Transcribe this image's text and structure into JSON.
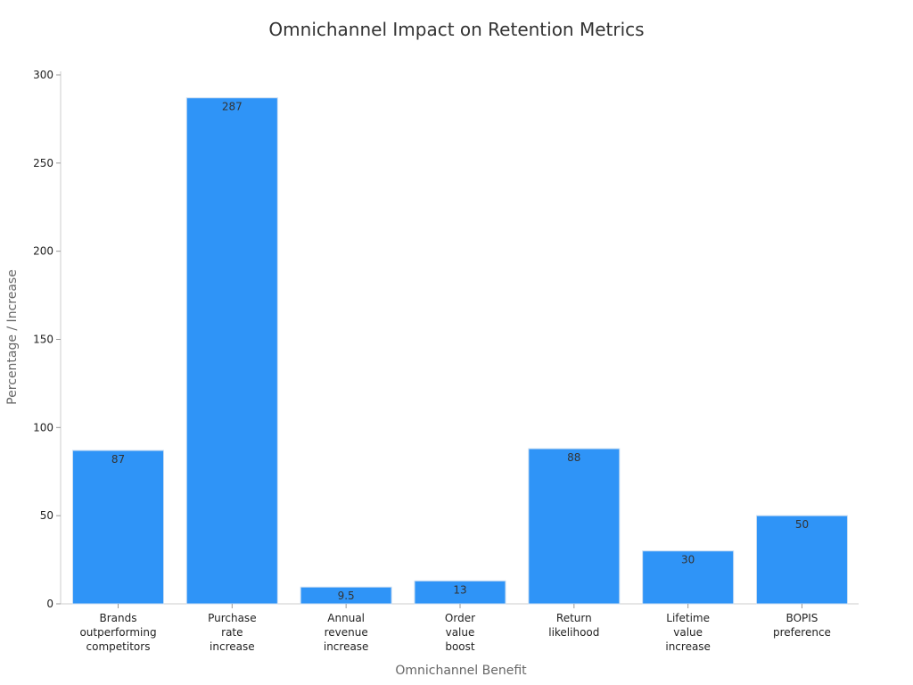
{
  "chart_data": {
    "type": "bar",
    "title": "Omnichannel Impact on Retention Metrics",
    "xlabel": "Omnichannel Benefit",
    "ylabel": "Percentage / Increase",
    "ylim": [
      0,
      300
    ],
    "yticks": [
      0,
      50,
      100,
      150,
      200,
      250,
      300
    ],
    "categories": [
      [
        "Brands",
        "outperforming",
        "competitors"
      ],
      [
        "Purchase",
        "rate",
        "increase"
      ],
      [
        "Annual",
        "revenue",
        "increase"
      ],
      [
        "Order",
        "value",
        "boost"
      ],
      [
        "Return",
        "likelihood"
      ],
      [
        "Lifetime",
        "value",
        "increase"
      ],
      [
        "BOPIS",
        "preference"
      ]
    ],
    "values": [
      87,
      287,
      9.5,
      13,
      88,
      30,
      50
    ],
    "bar_color": "#2f94f7",
    "grid": false,
    "legend": "none"
  }
}
